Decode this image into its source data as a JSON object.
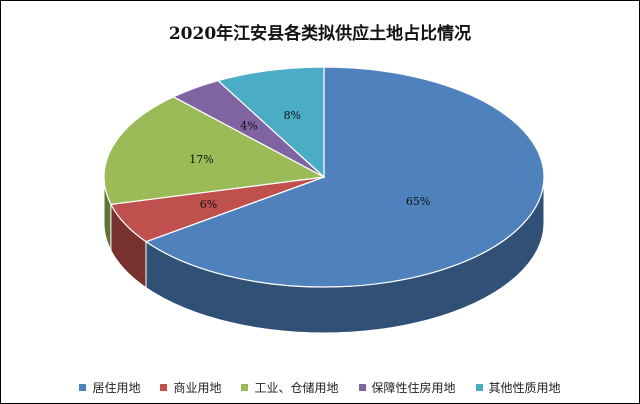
{
  "chart_data": {
    "type": "pie",
    "title": "2020年江安县各类拟供应土地占比情况",
    "categories": [
      "居住用地",
      "商业用地",
      "工业、仓储用地",
      "保障性住房用地",
      "其他性质用地"
    ],
    "values": [
      65,
      6,
      17,
      4,
      8
    ],
    "value_labels": [
      "65%",
      "6%",
      "17%",
      "4%",
      "8%"
    ],
    "colors": [
      "#4F81BD",
      "#C0504D",
      "#9BBB59",
      "#8064A2",
      "#4BACC6"
    ],
    "legend": "bottom",
    "three_d": true
  },
  "legend_items": [
    {
      "label": "居住用地",
      "color": "#4F81BD"
    },
    {
      "label": "商业用地",
      "color": "#C0504D"
    },
    {
      "label": "工业、仓储用地",
      "color": "#9BBB59"
    },
    {
      "label": "保障性住房用地",
      "color": "#8064A2"
    },
    {
      "label": "其他性质用地",
      "color": "#4BACC6"
    }
  ]
}
